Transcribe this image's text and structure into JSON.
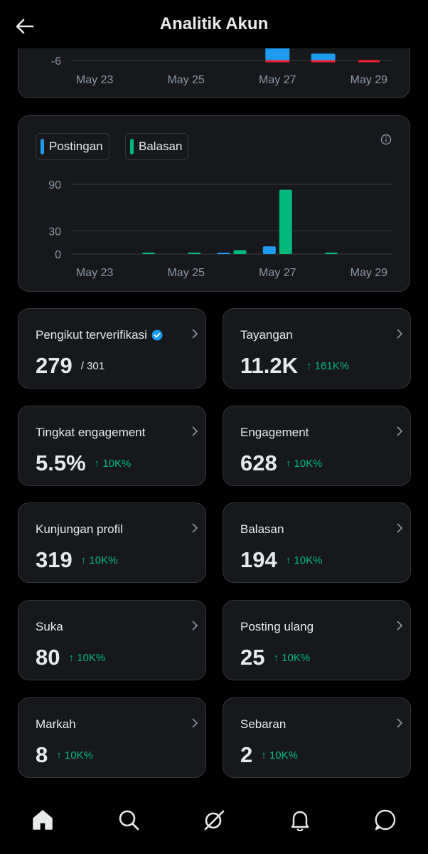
{
  "header": {
    "title": "Analitik Akun"
  },
  "chart_data": [
    {
      "type": "bar",
      "partial": true,
      "ytick_labels": [
        "-6"
      ],
      "categories": [
        "May 23",
        "May 24",
        "May 25",
        "May 26",
        "May 27",
        "May 28",
        "May 29"
      ],
      "xtick_labels": [
        "May 23",
        "May 25",
        "May 27",
        "May 29"
      ],
      "series": [
        {
          "color": "#1d9bf0",
          "values": [
            0,
            0,
            0,
            0,
            6,
            3,
            0
          ]
        },
        {
          "color": "#f4212e",
          "values": [
            0,
            0,
            0,
            0,
            -1,
            -1,
            -0.5
          ]
        }
      ]
    },
    {
      "type": "bar",
      "categories": [
        "May 23",
        "May 24",
        "May 25",
        "May 26",
        "May 27",
        "May 28",
        "May 29"
      ],
      "xtick_labels": [
        "May 23",
        "May 25",
        "May 27",
        "May 29"
      ],
      "yticks": [
        0,
        30,
        90
      ],
      "ylim": [
        0,
        90
      ],
      "legend": "top-left",
      "series": [
        {
          "name": "Postingan",
          "color": "#1d9bf0",
          "values": [
            0,
            0,
            0,
            1,
            10,
            0,
            0
          ]
        },
        {
          "name": "Balasan",
          "color": "#00ba7c",
          "values": [
            0,
            2,
            2,
            5,
            83,
            2,
            0
          ]
        }
      ]
    }
  ],
  "metrics": [
    {
      "label": "Pengikut terverifikasi",
      "value": "279",
      "sub": "/ 301",
      "verified": true
    },
    {
      "label": "Tayangan",
      "value": "11.2K",
      "change": "↑ 161K%"
    },
    {
      "label": "Tingkat engagement",
      "value": "5.5%",
      "change": "↑ 10K%"
    },
    {
      "label": "Engagement",
      "value": "628",
      "change": "↑ 10K%"
    },
    {
      "label": "Kunjungan profil",
      "value": "319",
      "change": "↑ 10K%"
    },
    {
      "label": "Balasan",
      "value": "194",
      "change": "↑ 10K%"
    },
    {
      "label": "Suka",
      "value": "80",
      "change": "↑ 10K%"
    },
    {
      "label": "Posting ulang",
      "value": "25",
      "change": "↑ 10K%"
    },
    {
      "label": "Markah",
      "value": "8",
      "change": "↑ 10K%"
    },
    {
      "label": "Sebaran",
      "value": "2",
      "change": "↑ 10K%"
    }
  ],
  "tabs": [
    {
      "icon": "home-icon"
    },
    {
      "icon": "search-icon"
    },
    {
      "icon": "grok-icon"
    },
    {
      "icon": "notifications-icon"
    },
    {
      "icon": "messages-icon"
    }
  ]
}
